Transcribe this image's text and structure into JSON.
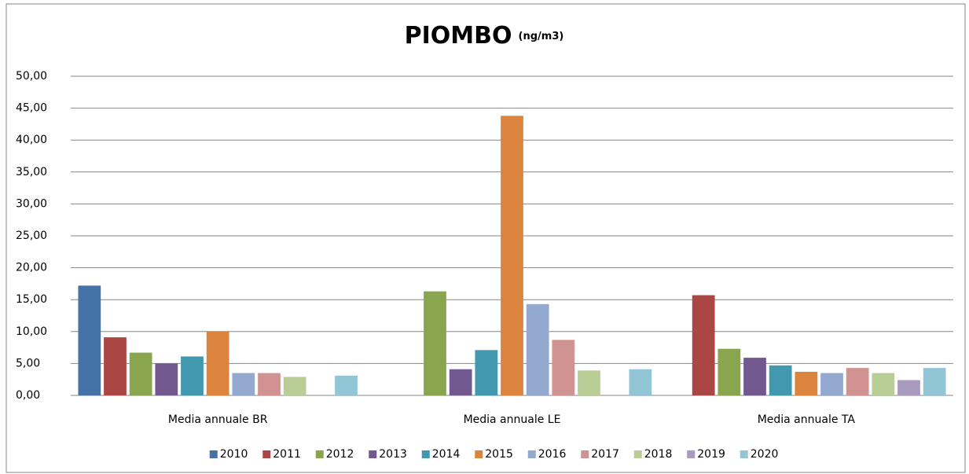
{
  "chart_data": {
    "type": "bar",
    "title": "PIOMBO",
    "subtitle": "(ng/m3)",
    "categories": [
      "Media annuale BR",
      "Media annuale LE",
      "Media annuale TA"
    ],
    "series": [
      {
        "name": "2010",
        "color": "#4572a7",
        "values": [
          17.2,
          null,
          null
        ]
      },
      {
        "name": "2011",
        "color": "#aa4643",
        "values": [
          9.1,
          null,
          15.7
        ]
      },
      {
        "name": "2012",
        "color": "#89a54e",
        "values": [
          6.7,
          16.3,
          7.3
        ]
      },
      {
        "name": "2013",
        "color": "#71588f",
        "values": [
          5.0,
          4.1,
          5.9
        ]
      },
      {
        "name": "2014",
        "color": "#4198af",
        "values": [
          6.1,
          7.1,
          4.7
        ]
      },
      {
        "name": "2015",
        "color": "#db843d",
        "values": [
          10.0,
          43.8,
          3.7
        ]
      },
      {
        "name": "2016",
        "color": "#93a9cf",
        "values": [
          3.5,
          14.3,
          3.5
        ]
      },
      {
        "name": "2017",
        "color": "#d19392",
        "values": [
          3.5,
          8.7,
          4.3
        ]
      },
      {
        "name": "2018",
        "color": "#b9cd96",
        "values": [
          2.9,
          3.9,
          3.5
        ]
      },
      {
        "name": "2019",
        "color": "#a99bbd",
        "values": [
          null,
          null,
          2.4
        ]
      },
      {
        "name": "2020",
        "color": "#92c5d5",
        "values": [
          3.1,
          4.1,
          4.3
        ]
      }
    ],
    "ylim": [
      0,
      50
    ],
    "yticks": [
      {
        "value": 0,
        "label": "0,00"
      },
      {
        "value": 5,
        "label": "5,00"
      },
      {
        "value": 10,
        "label": "10,00"
      },
      {
        "value": 15,
        "label": "15,00"
      },
      {
        "value": 20,
        "label": "20,00"
      },
      {
        "value": 25,
        "label": "25,00"
      },
      {
        "value": 30,
        "label": "30,00"
      },
      {
        "value": 35,
        "label": "35,00"
      },
      {
        "value": 40,
        "label": "40,00"
      },
      {
        "value": 45,
        "label": "45,00"
      },
      {
        "value": 50,
        "label": "50,00"
      }
    ],
    "grid": true,
    "legend": "bottom"
  }
}
